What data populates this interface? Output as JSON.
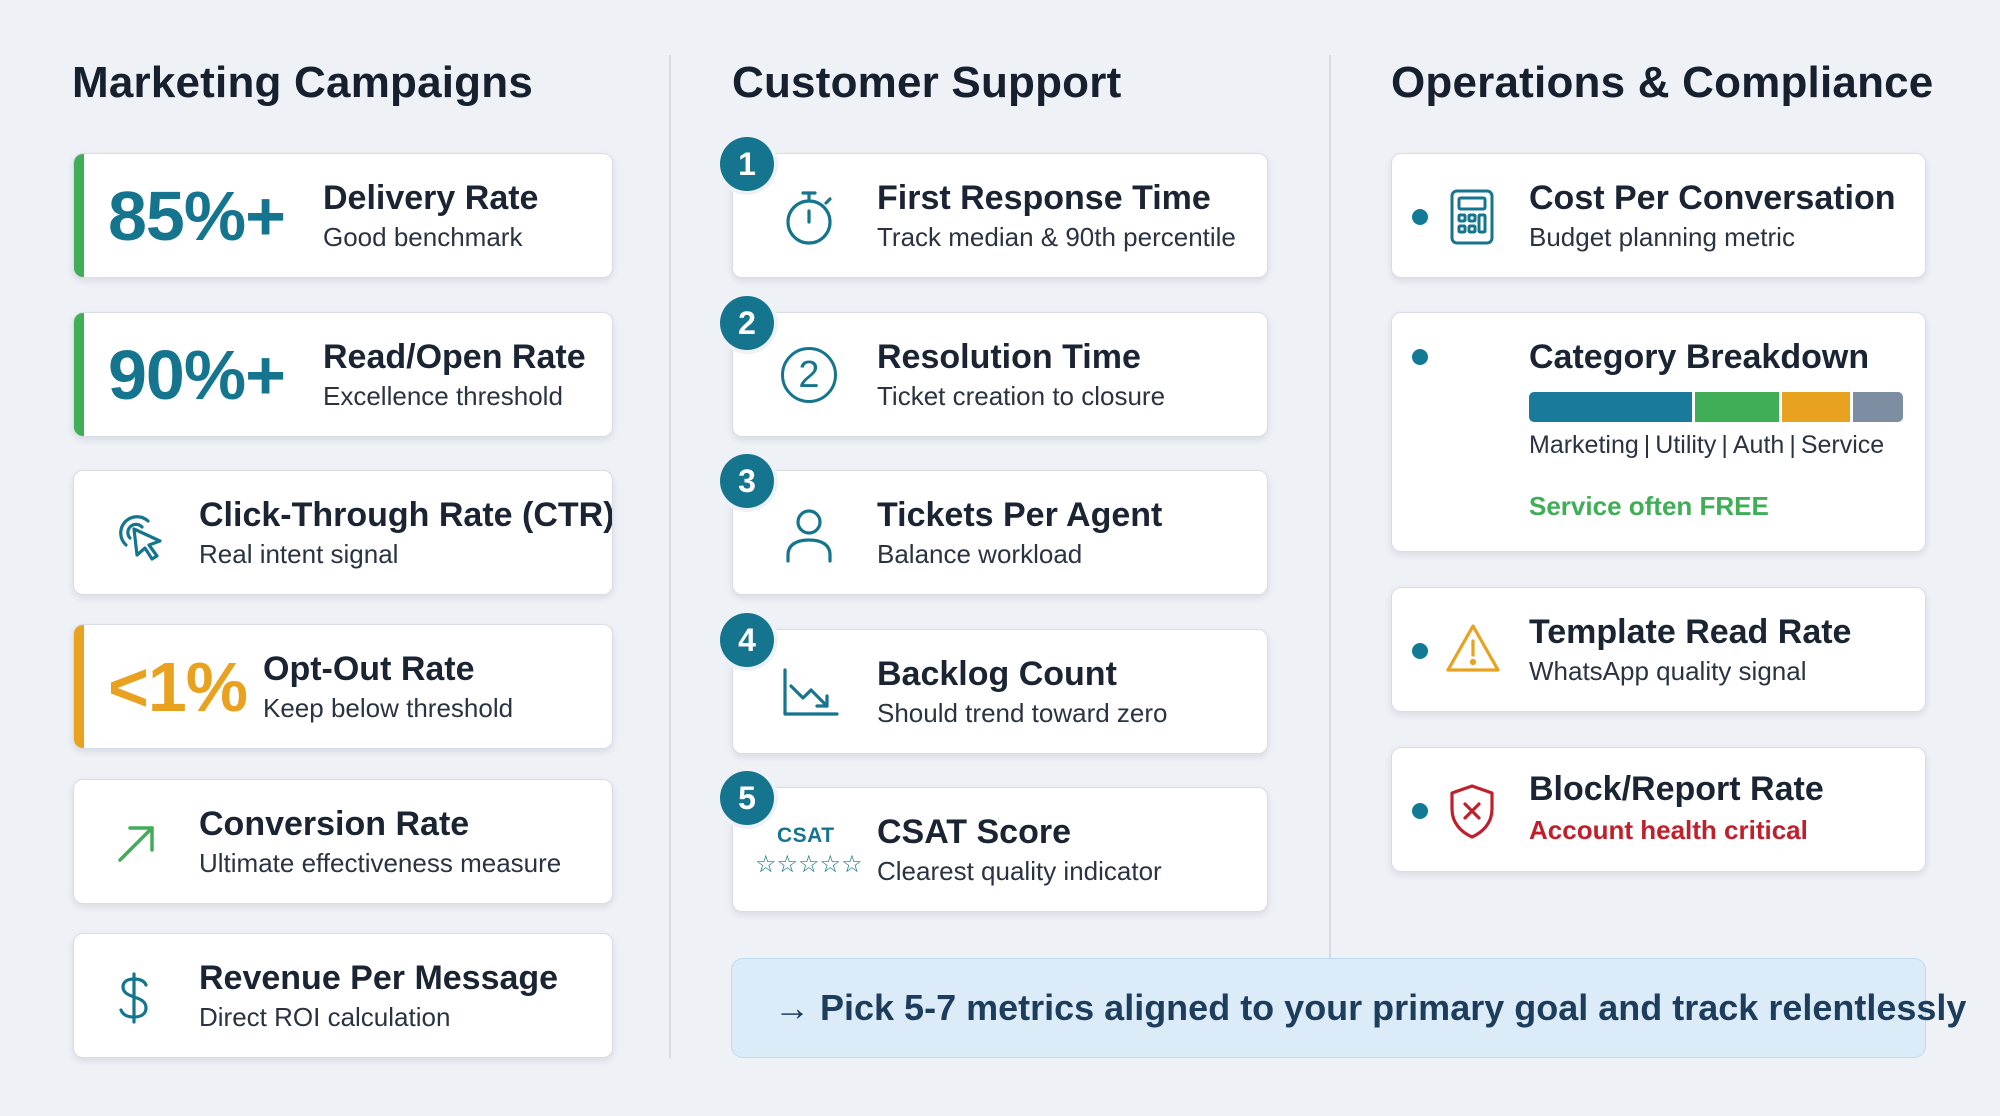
{
  "columns": {
    "marketing": {
      "title": "Marketing Campaigns",
      "cards": [
        {
          "big": "85%+",
          "title": "Delivery Rate",
          "sub": "Good benchmark"
        },
        {
          "big": "90%+",
          "title": "Read/Open Rate",
          "sub": "Excellence threshold"
        },
        {
          "icon": "cursor-click-icon",
          "title": "Click-Through Rate (CTR)",
          "sub": "Real intent signal"
        },
        {
          "big": "<1%",
          "title": "Opt-Out Rate",
          "sub": "Keep below threshold"
        },
        {
          "icon": "arrow-up-right-icon",
          "title": "Conversion Rate",
          "sub": "Ultimate effectiveness measure"
        },
        {
          "icon": "dollar-icon",
          "title": "Revenue Per Message",
          "sub": "Direct ROI calculation"
        }
      ]
    },
    "support": {
      "title": "Customer Support",
      "cards": [
        {
          "num": "1",
          "icon": "stopwatch-icon",
          "title": "First Response Time",
          "sub": "Track median & 90th percentile"
        },
        {
          "num": "2",
          "icon": "circle-two-icon",
          "icon_text": "2",
          "title": "Resolution Time",
          "sub": "Ticket creation to closure"
        },
        {
          "num": "3",
          "icon": "person-icon",
          "title": "Tickets Per Agent",
          "sub": "Balance workload"
        },
        {
          "num": "4",
          "icon": "trend-down-icon",
          "title": "Backlog Count",
          "sub": "Should trend toward zero"
        },
        {
          "num": "5",
          "icon": "csat-stars-icon",
          "icon_text": "CSAT",
          "stars": "☆☆☆☆☆",
          "title": "CSAT Score",
          "sub": "Clearest quality indicator"
        }
      ]
    },
    "operations": {
      "title": "Operations & Compliance",
      "cards": [
        {
          "icon": "calculator-icon",
          "title": "Cost Per Conversation",
          "sub": "Budget planning metric"
        },
        {
          "title": "Category Breakdown",
          "segments": [
            "Marketing",
            "Utility",
            "Auth",
            "Service"
          ],
          "note": "Service often FREE"
        },
        {
          "icon": "warning-icon",
          "title": "Template Read Rate",
          "sub": "WhatsApp quality signal"
        },
        {
          "icon": "shield-x-icon",
          "title": "Block/Report Rate",
          "sub": "Account health critical"
        }
      ]
    }
  },
  "footer": {
    "text": "→ Pick 5-7 metrics aligned to your primary goal and track relentlessly"
  },
  "colors": {
    "accent_green": "#3fae56",
    "accent_orange": "#e9a21f",
    "teal": "#15758f",
    "danger": "#c0202b",
    "segment_colors": [
      "#1a7a9c",
      "#3fae56",
      "#e9a21f",
      "#7d8ea3"
    ]
  }
}
